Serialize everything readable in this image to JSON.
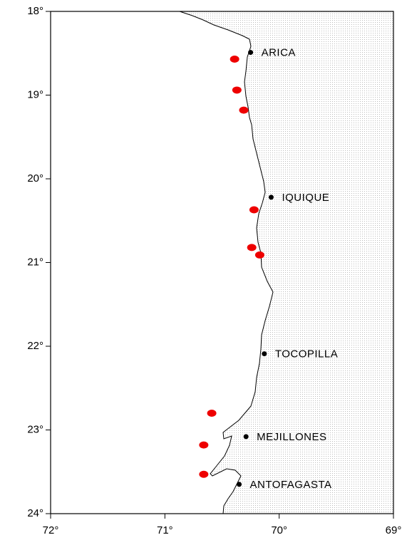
{
  "map": {
    "xlim": [
      72,
      69
    ],
    "ylim": [
      18,
      24
    ],
    "xticks": [
      {
        "value": 72,
        "label": "72°"
      },
      {
        "value": 71,
        "label": "71°"
      },
      {
        "value": 70,
        "label": "70°"
      },
      {
        "value": 69,
        "label": "69°"
      }
    ],
    "yticks": [
      {
        "value": 18,
        "label": "18°"
      },
      {
        "value": 19,
        "label": "19°"
      },
      {
        "value": 20,
        "label": "20°"
      },
      {
        "value": 21,
        "label": "21°"
      },
      {
        "value": 22,
        "label": "22°"
      },
      {
        "value": 23,
        "label": "23°"
      },
      {
        "value": 24,
        "label": "24°"
      }
    ],
    "cities": {
      "color": "#000000",
      "names": [
        "ARICA",
        "IQUIQUE",
        "TOCOPILLA",
        "MEJILLONES",
        "ANTOFAGASTA"
      ],
      "x": [
        70.25,
        70.07,
        70.13,
        70.29,
        70.35
      ],
      "y": [
        18.49,
        20.22,
        22.09,
        23.08,
        23.65
      ]
    },
    "stations": {
      "color": "#ee0000",
      "x": [
        70.39,
        70.37,
        70.31,
        70.22,
        70.24,
        70.17,
        70.59,
        70.66,
        70.66
      ],
      "y": [
        18.57,
        18.94,
        19.18,
        20.37,
        20.82,
        20.91,
        22.8,
        23.18,
        23.53
      ]
    }
  }
}
